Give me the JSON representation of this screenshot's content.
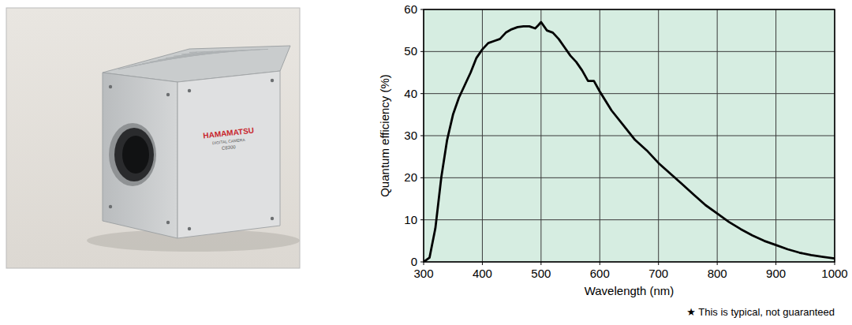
{
  "chart_data": {
    "type": "line",
    "xlabel": "Wavelength (nm)",
    "ylabel": "Quantum efficiency (%)",
    "annotation": "★ This is typical, not guaranteed",
    "x": [
      300,
      310,
      320,
      330,
      340,
      350,
      360,
      370,
      380,
      390,
      400,
      410,
      420,
      430,
      440,
      450,
      460,
      470,
      480,
      490,
      495,
      500,
      510,
      520,
      530,
      540,
      550,
      560,
      570,
      580,
      590,
      600,
      620,
      640,
      660,
      680,
      700,
      720,
      740,
      760,
      780,
      800,
      820,
      840,
      860,
      880,
      900,
      920,
      940,
      960,
      980,
      1000
    ],
    "values": [
      0,
      1,
      8,
      20,
      29,
      35,
      39,
      42,
      45,
      48.5,
      50.5,
      52,
      52.5,
      53,
      54.5,
      55.3,
      55.8,
      56,
      56,
      55.5,
      56.2,
      57,
      55,
      54.5,
      53,
      51,
      49,
      47.5,
      45.5,
      43,
      43,
      40.5,
      36,
      32.5,
      29,
      26.5,
      23.5,
      21,
      18.5,
      16,
      13.5,
      11.5,
      9.5,
      7.8,
      6.3,
      5,
      4,
      3,
      2.2,
      1.6,
      1.2,
      0.8
    ],
    "color": "#000000",
    "xlim": [
      300,
      1000
    ],
    "xticks": [
      300,
      400,
      500,
      600,
      700,
      800,
      900,
      1000
    ],
    "ylim": [
      0,
      60
    ],
    "yticks": [
      0,
      10,
      20,
      30,
      40,
      50,
      60
    ],
    "grid": true
  },
  "photo": {
    "brand": "HAMAMATSU",
    "caption": "DIGITAL CAMERA",
    "model": "C8300"
  }
}
